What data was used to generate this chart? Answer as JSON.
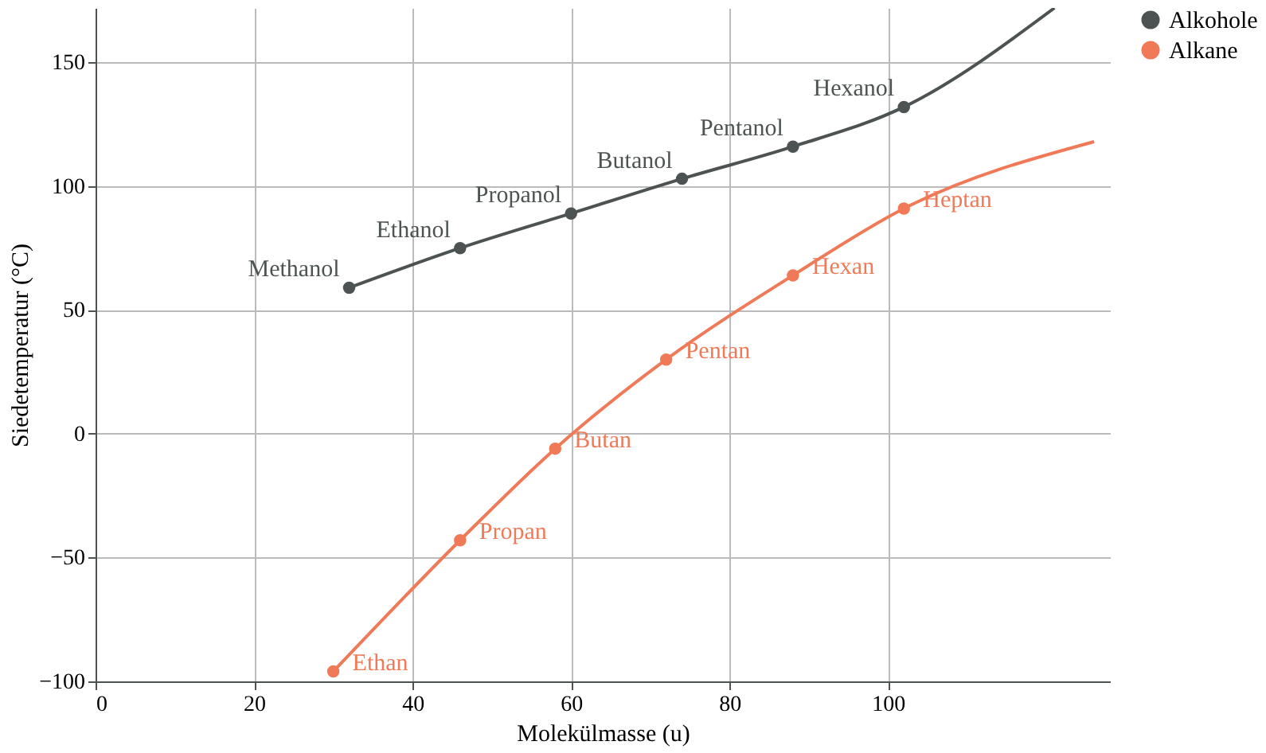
{
  "chart_data": {
    "type": "line",
    "xlabel": "Molekülmasse (u)",
    "ylabel": "Siedetemperatur (°C)",
    "series": [
      {
        "name": "Alkohole",
        "color": "#4d5252",
        "x": [
          32,
          46,
          60,
          74,
          88,
          102,
          121
        ],
        "values": [
          59,
          75,
          89,
          103,
          116,
          132,
          172
        ],
        "value_labels": [
          "Methanol",
          "Ethanol",
          "Propanol",
          "Butanol",
          "Pentanol",
          "Hexanol",
          null
        ]
      },
      {
        "name": "Alkane",
        "color": "#f07a57",
        "x": [
          30,
          46,
          58,
          72,
          88,
          102,
          126
        ],
        "values": [
          -96,
          -43,
          -6,
          30,
          64,
          91,
          118
        ],
        "value_labels": [
          "Ethan",
          "Propan",
          "Butan",
          "Pentan",
          "Hexan",
          "Heptan",
          null
        ]
      }
    ],
    "xlim": [
      0,
      128
    ],
    "xticks": [
      0,
      20,
      40,
      60,
      80,
      100
    ],
    "ylim": [
      -100,
      172
    ],
    "yticks": [
      -100,
      -50,
      0,
      50,
      100,
      150
    ],
    "grid": true,
    "legend": "right",
    "marker": "circle",
    "line_style": "solid"
  }
}
